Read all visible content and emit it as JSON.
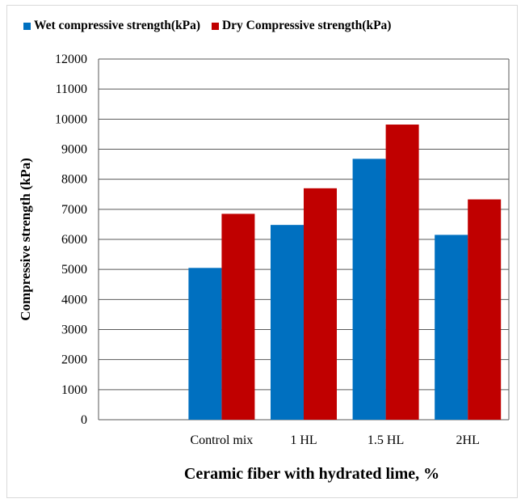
{
  "chart_data": {
    "type": "bar",
    "categories": [
      "",
      "Control mix",
      "1 HL",
      "1.5 HL",
      "2HL"
    ],
    "series": [
      {
        "name": "Wet compressive strength(kPa)",
        "color": "#0070C0",
        "values": [
          null,
          5050,
          6480,
          8680,
          6150
        ]
      },
      {
        "name": "Dry Compressive strength(kPa)",
        "color": "#C00000",
        "values": [
          null,
          6850,
          7700,
          9820,
          7330
        ]
      }
    ],
    "title": "",
    "xlabel": "Ceramic fiber with hydrated lime, %",
    "ylabel": "Compressive strength (kPa)",
    "ylim": [
      0,
      12000
    ],
    "yticks": [
      "0",
      "1000",
      "2000",
      "3000",
      "4000",
      "5000",
      "6000",
      "7000",
      "8000",
      "9000",
      "10000",
      "11000",
      "12000"
    ],
    "grid": true,
    "legend_position": "top"
  }
}
